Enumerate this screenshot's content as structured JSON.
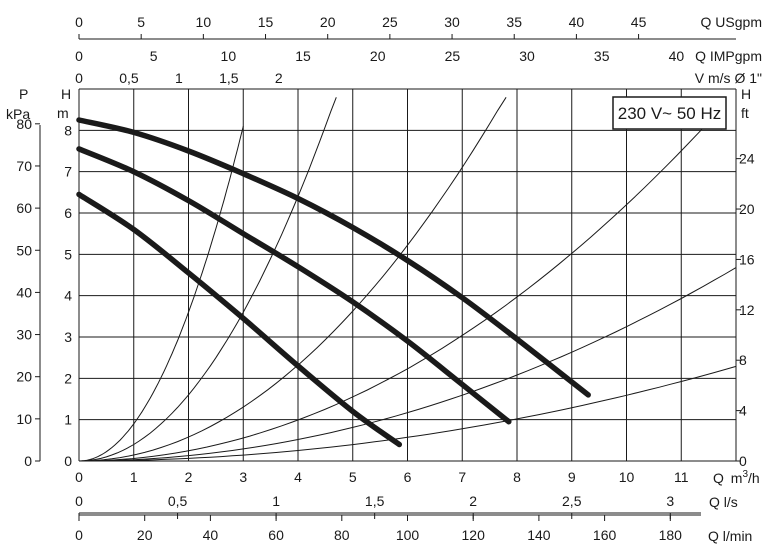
{
  "chart_data": {
    "type": "line",
    "badge": "230 V~ 50 Hz",
    "grid": true,
    "axes": {
      "x_main": {
        "label_q": "Q",
        "label_unit": "m",
        "label_sup": "3",
        "label_tail": "/h",
        "range": [
          0,
          12
        ],
        "ticks": [
          "0",
          "1",
          "2",
          "3",
          "4",
          "5",
          "6",
          "7",
          "8",
          "9",
          "10",
          "11"
        ]
      },
      "x_top_usgpm": {
        "label": "Q USgpm",
        "ticks": [
          "0",
          "5",
          "10",
          "15",
          "20",
          "25",
          "30",
          "35",
          "40",
          "45"
        ],
        "values": [
          0,
          5,
          10,
          15,
          20,
          25,
          30,
          35,
          40,
          45
        ]
      },
      "x_top_impgpm": {
        "label": "Q IMPgpm",
        "ticks": [
          "0",
          "5",
          "10",
          "15",
          "20",
          "25",
          "30",
          "35",
          "40"
        ],
        "values": [
          0,
          5,
          10,
          15,
          20,
          25,
          30,
          35,
          40
        ]
      },
      "x_top_velocity": {
        "label": "V m/s Ø 1\"",
        "ticks": [
          "0",
          "0,5",
          "1",
          "1,5",
          "2"
        ],
        "values": [
          0,
          0.5,
          1,
          1.5,
          2
        ]
      },
      "x_bottom_ls": {
        "label": "Q l/s",
        "ticks": [
          "0",
          "0,5",
          "1",
          "1,5",
          "2",
          "2,5",
          "3"
        ],
        "values": [
          0,
          0.5,
          1,
          1.5,
          2,
          2.5,
          3
        ]
      },
      "x_bottom_lmin": {
        "label": "Q l/min",
        "ticks": [
          "0",
          "20",
          "40",
          "60",
          "80",
          "100",
          "120",
          "140",
          "160",
          "180"
        ],
        "values": [
          0,
          20,
          40,
          60,
          80,
          100,
          120,
          140,
          160,
          180
        ]
      },
      "y_head_m": {
        "label_top": "H",
        "label_unit": "m",
        "range": [
          0,
          9
        ],
        "ticks": [
          "0",
          "1",
          "2",
          "3",
          "4",
          "5",
          "6",
          "7",
          "8"
        ]
      },
      "y_pressure_kpa": {
        "label_top": "P",
        "label_unit": "kPa",
        "ticks": [
          "0",
          "10",
          "20",
          "30",
          "40",
          "50",
          "60",
          "70",
          "80"
        ],
        "values": [
          0,
          10,
          20,
          30,
          40,
          50,
          60,
          70,
          80
        ]
      },
      "y_head_ft": {
        "label_top": "H",
        "label_unit": "ft",
        "ticks": [
          "0",
          "4",
          "8",
          "12",
          "16",
          "20",
          "24"
        ],
        "values": [
          0,
          4,
          8,
          12,
          16,
          20,
          24
        ]
      }
    },
    "series": [
      {
        "x": [
          0,
          1,
          2,
          3,
          4,
          5,
          5.85
        ],
        "y": [
          6.45,
          5.6,
          4.55,
          3.45,
          2.3,
          1.2,
          0.4
        ]
      },
      {
        "x": [
          0,
          1,
          2,
          3,
          4,
          5,
          6,
          7,
          7.85
        ],
        "y": [
          7.55,
          7.0,
          6.3,
          5.5,
          4.7,
          3.85,
          2.9,
          1.85,
          0.95
        ]
      },
      {
        "x": [
          0,
          1,
          2,
          3,
          4,
          5,
          6,
          7,
          8,
          9.3
        ],
        "y": [
          8.25,
          7.95,
          7.5,
          6.95,
          6.35,
          5.65,
          4.85,
          3.95,
          2.95,
          1.6
        ]
      }
    ],
    "system_curves": [
      {
        "k": 0.9,
        "x_end": 3.0
      },
      {
        "k": 0.4,
        "x_end": 6.0
      },
      {
        "k": 0.145,
        "x_end": 9.0
      },
      {
        "k": 0.062,
        "x_end": 11.7
      },
      {
        "k": 0.0325,
        "x_end": 12.0
      },
      {
        "k": 0.0159,
        "x_end": 12.0
      }
    ]
  }
}
